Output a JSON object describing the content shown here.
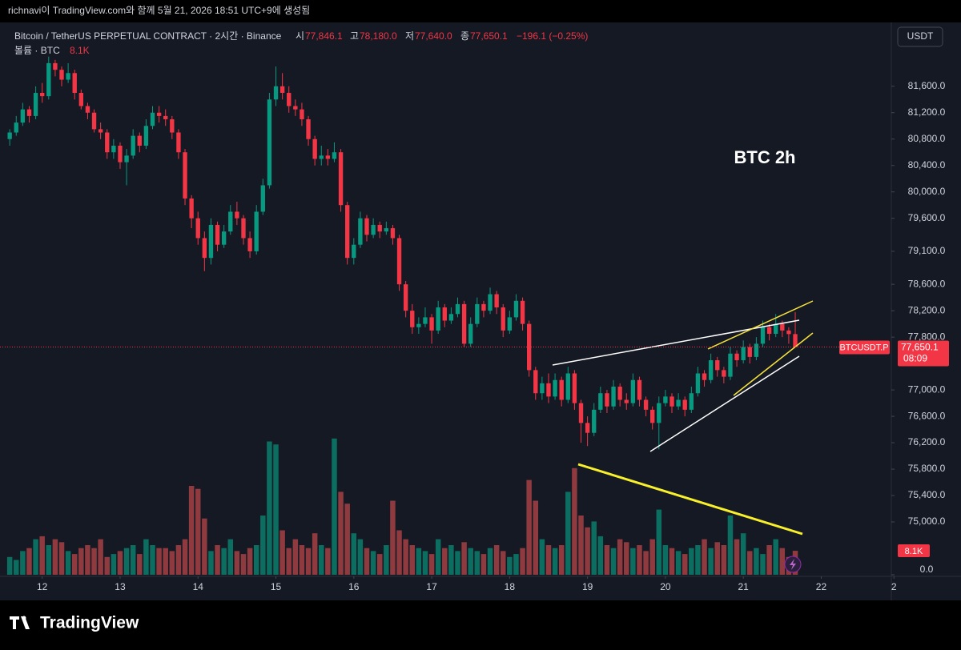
{
  "chart_data": {
    "type": "candlestick",
    "watermark_header": "richnavi이 TradingView.com와 함께 5월 21, 2026 18:51 UTC+9에 생성됨",
    "title": "Bitcoin / TetherUS PERPETUAL CONTRACT · 2시간 · Binance",
    "legend": {
      "open_label": "시",
      "open": "77,846.1",
      "high_label": "고",
      "high": "78,180.0",
      "low_label": "저",
      "low": "77,640.0",
      "close_label": "종",
      "close": "77,650.1",
      "change": "−196.1 (−0.25%)"
    },
    "volume_title": "볼륨 · BTC",
    "volume_last_label": "8.1K",
    "currency": "USDT",
    "annotation": "BTC 2h",
    "symbol_tag": "BTCUSDT.P",
    "price_tag": "77,650.1",
    "countdown": "08:09",
    "brand": "TradingView",
    "up_color": "#089981",
    "down_color": "#f23645",
    "volume_up_color": "#0b6e60",
    "volume_down_color": "#8e3a3f",
    "open": [
      80800,
      80900,
      81050,
      81250,
      81150,
      81500,
      81450,
      81950,
      81850,
      81700,
      81800,
      81500,
      81300,
      81200,
      80950,
      80900,
      80600,
      80700,
      80450,
      80550,
      80850,
      80700,
      81000,
      81200,
      81150,
      81100,
      80900,
      80600,
      79900,
      79600,
      79300,
      79000,
      79500,
      79200,
      79400,
      79700,
      79600,
      79300,
      79100,
      79700,
      80100,
      81400,
      81600,
      81500,
      81300,
      81250,
      81100,
      80800,
      80500,
      80550,
      80500,
      80600,
      79800,
      79000,
      79200,
      79600,
      79350,
      79500,
      79400,
      79450,
      79300,
      78600,
      78200,
      77950,
      78000,
      78100,
      77900,
      78250,
      78050,
      78150,
      78300,
      77700,
      78000,
      78300,
      78200,
      78450,
      78250,
      77900,
      78100,
      78350,
      78000,
      77300,
      76950,
      77100,
      76900,
      77150,
      76850,
      77250,
      76800,
      76500,
      76350,
      76700,
      76950,
      76750,
      77050,
      76850,
      76800,
      77150,
      76850,
      76700,
      76500,
      76800,
      76900,
      76750,
      76850,
      76700,
      76950,
      77250,
      77150,
      77450,
      77300,
      77200,
      77550,
      77450,
      77650,
      77500,
      77700,
      77950,
      77850,
      78000,
      77900,
      77846.1
    ],
    "high": [
      80950,
      81150,
      81350,
      81300,
      81600,
      81650,
      82050,
      82000,
      81900,
      81950,
      81850,
      81550,
      81350,
      81250,
      81050,
      80950,
      80800,
      80750,
      80650,
      80950,
      80900,
      81100,
      81300,
      81300,
      81250,
      81150,
      80950,
      80650,
      79950,
      79700,
      79400,
      79600,
      79550,
      79500,
      79800,
      79850,
      79650,
      79400,
      79800,
      80200,
      81500,
      81900,
      81800,
      81600,
      81400,
      81350,
      81150,
      80850,
      80700,
      80650,
      80750,
      80650,
      79850,
      79300,
      79700,
      79650,
      79600,
      79550,
      79550,
      79500,
      79350,
      78650,
      78300,
      78100,
      78250,
      78150,
      78350,
      78300,
      78250,
      78400,
      78350,
      78100,
      78400,
      78350,
      78550,
      78500,
      78300,
      78200,
      78450,
      78400,
      78050,
      77350,
      77200,
      77250,
      77250,
      77200,
      77350,
      77300,
      76850,
      76600,
      76800,
      77050,
      77000,
      77150,
      77100,
      76950,
      77250,
      77200,
      76900,
      76750,
      76900,
      77000,
      76950,
      76950,
      76900,
      77050,
      77350,
      77300,
      77550,
      77500,
      77350,
      77650,
      77600,
      77750,
      77700,
      77800,
      78050,
      78000,
      78150,
      78050,
      77950,
      78180
    ],
    "low": [
      80700,
      80850,
      81000,
      81050,
      81100,
      81350,
      81400,
      81750,
      81600,
      81650,
      81400,
      81250,
      81100,
      80900,
      80800,
      80500,
      80500,
      80350,
      80100,
      80500,
      80600,
      80650,
      80950,
      81050,
      81000,
      80800,
      80500,
      79800,
      79450,
      79200,
      78800,
      78900,
      79100,
      79150,
      79350,
      79500,
      79200,
      79000,
      79050,
      79650,
      80050,
      81300,
      81400,
      81200,
      81150,
      81000,
      80700,
      80400,
      80400,
      80400,
      80450,
      79700,
      78900,
      78900,
      79150,
      79250,
      79300,
      79300,
      79350,
      79200,
      78500,
      78100,
      77850,
      77850,
      77950,
      77700,
      77850,
      77950,
      78000,
      78100,
      77650,
      77650,
      77950,
      78100,
      78150,
      78150,
      77800,
      77850,
      78050,
      77900,
      77200,
      76850,
      76850,
      76800,
      76850,
      76750,
      76800,
      76700,
      76200,
      76150,
      76300,
      76650,
      76650,
      76700,
      76750,
      76700,
      76750,
      76750,
      76600,
      76400,
      76100,
      76750,
      76650,
      76700,
      76600,
      76650,
      76900,
      77050,
      77100,
      77200,
      77100,
      77150,
      77350,
      77400,
      77400,
      77450,
      77650,
      77750,
      77800,
      77800,
      77700,
      77640
    ],
    "close": [
      80900,
      81050,
      81250,
      81150,
      81500,
      81450,
      81950,
      81850,
      81700,
      81800,
      81500,
      81300,
      81200,
      80950,
      80900,
      80600,
      80700,
      80450,
      80550,
      80850,
      80700,
      81000,
      81200,
      81150,
      81100,
      80900,
      80600,
      79900,
      79600,
      79300,
      79000,
      79500,
      79200,
      79400,
      79700,
      79600,
      79300,
      79100,
      79700,
      80100,
      81400,
      81600,
      81500,
      81300,
      81250,
      81100,
      80800,
      80500,
      80550,
      80500,
      80600,
      79800,
      79000,
      79200,
      79600,
      79350,
      79500,
      79400,
      79450,
      79300,
      78600,
      78200,
      77950,
      78000,
      78100,
      77900,
      78250,
      78050,
      78150,
      78300,
      77700,
      78000,
      78300,
      78200,
      78450,
      78250,
      77900,
      78100,
      78350,
      78000,
      77300,
      76950,
      77100,
      76900,
      77150,
      76850,
      77250,
      76800,
      76500,
      76350,
      76700,
      76950,
      76750,
      77050,
      76850,
      76800,
      77150,
      76850,
      76700,
      76500,
      76800,
      76900,
      76750,
      76850,
      76700,
      76950,
      77250,
      77150,
      77450,
      77300,
      77200,
      77550,
      77450,
      77650,
      77500,
      77700,
      77950,
      77850,
      78000,
      77900,
      77846.1,
      77650.1
    ],
    "volume": [
      6,
      5,
      8,
      9,
      12,
      13,
      10,
      12,
      11,
      8,
      7,
      9,
      10,
      9,
      12,
      6,
      7,
      8,
      9,
      10,
      7,
      12,
      10,
      9,
      9,
      8,
      10,
      12,
      30,
      29,
      19,
      8,
      10,
      9,
      12,
      8,
      7,
      9,
      10,
      20,
      45,
      44,
      15,
      9,
      12,
      10,
      9,
      14,
      10,
      9,
      46,
      28,
      24,
      14,
      12,
      9,
      8,
      7,
      10,
      25,
      15,
      12,
      10,
      9,
      8,
      7,
      12,
      9,
      10,
      8,
      11,
      9,
      8,
      7,
      9,
      10,
      8,
      6,
      7,
      9,
      32,
      25,
      12,
      10,
      9,
      10,
      28,
      36,
      20,
      16,
      18,
      13,
      10,
      9,
      12,
      11,
      9,
      10,
      8,
      12,
      22,
      10,
      9,
      8,
      7,
      9,
      10,
      12,
      9,
      11,
      10,
      20,
      12,
      14,
      8,
      9,
      7,
      10,
      12,
      9,
      6,
      8.1
    ],
    "xlim": [
      -1.5,
      135.8
    ],
    "xticks": [
      {
        "value": 5,
        "label": "12"
      },
      {
        "value": 17,
        "label": "13"
      },
      {
        "value": 29,
        "label": "14"
      },
      {
        "value": 41,
        "label": "15"
      },
      {
        "value": 53,
        "label": "16"
      },
      {
        "value": 65,
        "label": "17"
      },
      {
        "value": 77,
        "label": "18"
      },
      {
        "value": 89,
        "label": "19"
      },
      {
        "value": 101,
        "label": "20"
      },
      {
        "value": 113,
        "label": "21"
      },
      {
        "value": 125,
        "label": "22"
      },
      {
        "value": 136.2,
        "label": "2"
      }
    ],
    "ylim": [
      74200,
      82240
    ],
    "yticks": [
      {
        "value": 81600,
        "label": "81,600.0"
      },
      {
        "value": 81200,
        "label": "81,200.0"
      },
      {
        "value": 80800,
        "label": "80,800.0"
      },
      {
        "value": 80400,
        "label": "80,400.0"
      },
      {
        "value": 80000,
        "label": "80,000.0"
      },
      {
        "value": 79600,
        "label": "79,600.0"
      },
      {
        "value": 79100,
        "label": "79,100.0"
      },
      {
        "value": 78600,
        "label": "78,600.0"
      },
      {
        "value": 78200,
        "label": "78,200.0"
      },
      {
        "value": 77800,
        "label": "77,800.0"
      },
      {
        "value": 77000,
        "label": "77,000.0"
      },
      {
        "value": 76600,
        "label": "76,600.0"
      },
      {
        "value": 76200,
        "label": "76,200.0"
      },
      {
        "value": 75800,
        "label": "75,800.0"
      },
      {
        "value": 75400,
        "label": "75,400.0"
      },
      {
        "value": 75000,
        "label": "75,000.0"
      }
    ],
    "vlim": [
      0,
      50
    ],
    "vticks": [
      {
        "value": 0,
        "label": "0.0"
      }
    ],
    "grid": false
  }
}
